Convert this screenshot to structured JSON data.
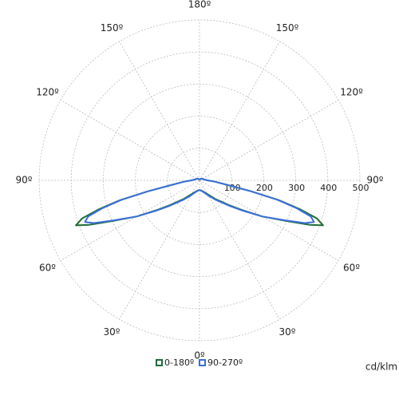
{
  "chart_data": {
    "type": "polar",
    "axis_label": "cd/klm",
    "x": [
      0,
      10,
      20,
      30,
      40,
      50,
      55,
      60,
      65,
      68,
      70,
      72,
      74,
      76,
      78,
      80,
      85,
      90,
      100,
      120,
      150,
      180
    ],
    "series": [
      {
        "name": "0-180º",
        "color": "#1e6b3a",
        "values": [
          30,
          32,
          38,
          50,
          75,
          120,
          160,
          225,
          300,
          370,
          410,
          385,
          325,
          255,
          165,
          100,
          50,
          25,
          15,
          10,
          5,
          3
        ]
      },
      {
        "name": "90-270º",
        "color": "#3b6fd9",
        "values": [
          30,
          33,
          40,
          55,
          80,
          125,
          165,
          225,
          295,
          355,
          380,
          365,
          315,
          250,
          165,
          100,
          50,
          25,
          15,
          10,
          5,
          3
        ]
      }
    ],
    "rlim": [
      0,
      500
    ],
    "rticks": [
      100,
      200,
      300,
      400,
      500
    ],
    "xticks": [
      {
        "value": 0,
        "label": "0º"
      },
      {
        "value": 30,
        "label": "30º"
      },
      {
        "value": 60,
        "label": "60º"
      },
      {
        "value": 90,
        "label": "90º"
      },
      {
        "value": 120,
        "label": "120º"
      },
      {
        "value": 150,
        "label": "150º"
      },
      {
        "value": 180,
        "label": "180º"
      }
    ]
  }
}
